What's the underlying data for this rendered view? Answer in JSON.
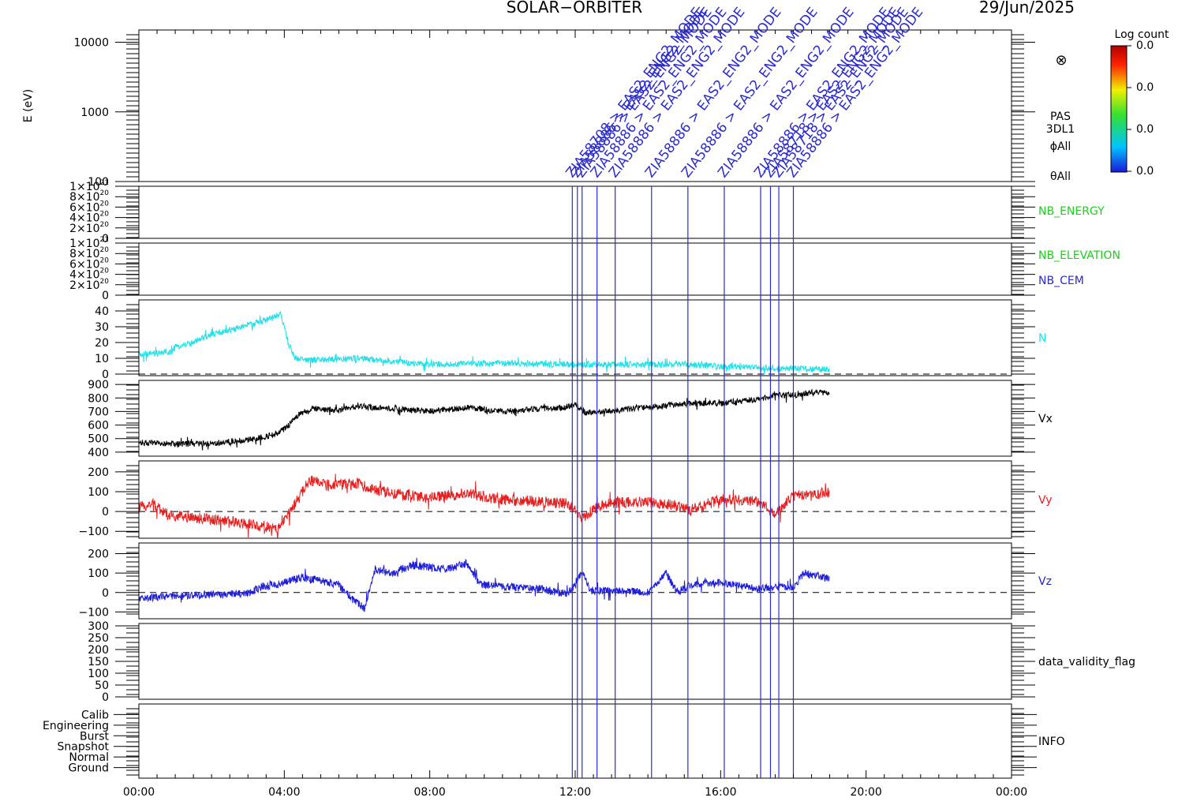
{
  "header": {
    "mission": "SOLAR−ORBITER",
    "date": "29/Jun/2025"
  },
  "colorbar": {
    "title": "Log count",
    "ticks": [
      "0.0",
      "0.0",
      "0.0",
      "0.0"
    ]
  },
  "time_axis": {
    "ticks": [
      "00:00",
      "04:00",
      "08:00",
      "12:00",
      "16:00",
      "20:00",
      "00:00"
    ],
    "range_hours": [
      0,
      24
    ]
  },
  "events": {
    "times_hours": [
      11.92,
      12.06,
      12.19,
      12.6,
      13.1,
      14.1,
      15.1,
      16.1,
      17.1,
      17.37,
      17.6,
      18.0
    ],
    "labels": [
      "ZIA58708 > EAS2_ENG2_MODE",
      "ZIA58886 > EAS2_ENG2_MODE",
      "ZIA58886 > EAS2_ENG2_MODE",
      "ZIA58886 > EAS2_ENG2_MODE",
      "ZIA58886 > EAS2_ENG2_MODE",
      "ZIA58886 > EAS2_ENG2_MODE",
      "ZIA58886 > EAS2_ENG2_MODE",
      "ZIA58886 > EAS2_ENG2_MODE",
      "ZIA58886 > EAS2_ENG2_MODE",
      "ZIA58718 > EAS2_ENG2_MODE",
      "ZIA58718 > EAS2_ENG2_MODE",
      "ZIA58886 > EAS2_ENG2_MODE"
    ],
    "color": "#2b2bd0"
  },
  "chart_data": [
    {
      "type": "spectrogram",
      "ylabel": "E (eV)",
      "yscale": "log",
      "ylim": [
        100,
        15000
      ],
      "ticks": [
        100,
        1000,
        10000
      ],
      "tick_labels": [
        "100",
        "1000",
        "10000"
      ],
      "right_labels": [
        "PAS",
        "3DL1",
        "ϕAll",
        "θAll"
      ],
      "no_data_symbol": "⊗"
    },
    {
      "type": "line",
      "ylim": [
        0,
        1e+21
      ],
      "ticks": [
        0,
        2e+20,
        4e+20,
        6e+20,
        8e+20,
        1e+21
      ],
      "tick_labels": [
        {
          "m": "0",
          "e": ""
        },
        {
          "m": "2×10",
          "e": "20"
        },
        {
          "m": "4×10",
          "e": "20"
        },
        {
          "m": "6×10",
          "e": "20"
        },
        {
          "m": "8×10",
          "e": "20"
        },
        {
          "m": "1×10",
          "e": "21"
        }
      ],
      "right_labels": [
        {
          "text": "NB_ENERGY",
          "color": "#22cc22"
        }
      ],
      "zero_line": true
    },
    {
      "type": "line",
      "ylim": [
        0,
        1e+21
      ],
      "ticks": [
        0,
        2e+20,
        4e+20,
        6e+20,
        8e+20,
        1e+21
      ],
      "tick_labels": [
        {
          "m": "0",
          "e": ""
        },
        {
          "m": "2×10",
          "e": "20"
        },
        {
          "m": "4×10",
          "e": "20"
        },
        {
          "m": "6×10",
          "e": "20"
        },
        {
          "m": "8×10",
          "e": "20"
        },
        {
          "m": "1×10",
          "e": "21"
        }
      ],
      "right_labels": [
        {
          "text": "NB_ELEVATION",
          "color": "#22cc22"
        },
        {
          "text": "NB_CEM",
          "color": "#2b2bd0"
        }
      ],
      "zero_line": true
    },
    {
      "type": "line",
      "ylim": [
        -1,
        47
      ],
      "ticks": [
        0,
        10,
        20,
        30,
        40
      ],
      "right_labels": [
        {
          "text": "N",
          "color": "#22e0e8"
        }
      ],
      "zero_line": true,
      "series": [
        {
          "color": "#22e0e8",
          "x": [
            0,
            0.5,
            0.9,
            1.0,
            1.5,
            2.0,
            2.5,
            3.0,
            3.3,
            3.6,
            3.9,
            4.0,
            4.1,
            4.3,
            4.6,
            5.0,
            6.0,
            7.0,
            8.0,
            10.0,
            12.0,
            14.0,
            15.0,
            16.0,
            17.0,
            18.0,
            19.0
          ],
          "y": [
            12,
            13,
            14,
            17,
            20,
            25,
            28,
            31,
            33,
            35,
            38,
            30,
            20,
            10,
            9,
            9,
            10,
            8,
            6,
            7,
            6,
            6,
            6,
            5,
            4,
            3.5,
            3
          ],
          "noise": 2.0
        }
      ]
    },
    {
      "type": "line",
      "ylim": [
        370,
        930
      ],
      "ticks": [
        400,
        500,
        600,
        700,
        800,
        900
      ],
      "right_labels": [
        {
          "text": "Vx",
          "color": "#000000"
        }
      ],
      "series": [
        {
          "color": "#000000",
          "x": [
            0,
            1,
            2,
            3,
            3.6,
            3.8,
            4.1,
            4.4,
            4.8,
            5.5,
            6,
            7,
            8,
            9,
            10,
            11,
            11.7,
            12.0,
            12.3,
            13,
            14,
            15,
            16,
            17,
            17.5,
            18,
            18.5,
            19.0
          ],
          "y": [
            470,
            460,
            465,
            490,
            520,
            540,
            590,
            680,
            720,
            710,
            740,
            720,
            700,
            730,
            700,
            720,
            730,
            750,
            690,
            705,
            730,
            760,
            760,
            790,
            820,
            820,
            840,
            840
          ],
          "noise": 22
        }
      ]
    },
    {
      "type": "line",
      "ylim": [
        -135,
        255
      ],
      "ticks": [
        -100,
        0,
        100,
        200
      ],
      "tick_labels": [
        "−100",
        "0",
        "100",
        "200"
      ],
      "right_labels": [
        {
          "text": "Vy",
          "color": "#e81e1e"
        }
      ],
      "zero_line": true,
      "series": [
        {
          "color": "#e81e1e",
          "x": [
            0,
            0.4,
            0.8,
            1.5,
            2.5,
            3.3,
            3.8,
            4.1,
            4.4,
            4.7,
            5.2,
            6.0,
            6.5,
            7.0,
            8.0,
            9.0,
            10.0,
            11.0,
            11.8,
            12.2,
            12.7,
            13.5,
            14.5,
            15.2,
            16.0,
            17.0,
            17.5,
            18.0,
            18.5,
            19.0
          ],
          "y": [
            20,
            40,
            -20,
            -30,
            -50,
            -70,
            -90,
            -20,
            70,
            160,
            130,
            140,
            110,
            90,
            70,
            90,
            60,
            50,
            40,
            -30,
            30,
            50,
            40,
            10,
            60,
            50,
            -10,
            80,
            80,
            100
          ],
          "noise": 28
        }
      ]
    },
    {
      "type": "line",
      "ylim": [
        -135,
        255
      ],
      "ticks": [
        -100,
        0,
        100,
        200
      ],
      "tick_labels": [
        "−100",
        "0",
        "100",
        "200"
      ],
      "right_labels": [
        {
          "text": "Vz",
          "color": "#1e1ed8"
        }
      ],
      "zero_line": true,
      "series": [
        {
          "color": "#1e1ed8",
          "x": [
            0,
            1,
            2,
            3,
            3.4,
            4.0,
            4.5,
            5.0,
            5.5,
            5.9,
            6.2,
            6.5,
            7.0,
            7.5,
            8.0,
            8.5,
            9.0,
            9.4,
            10.0,
            11.0,
            11.8,
            12.2,
            12.4,
            13.0,
            14.0,
            14.5,
            14.8,
            15.2,
            16.0,
            17.0,
            18.0,
            18.3,
            19.0
          ],
          "y": [
            -30,
            -20,
            -10,
            -5,
            30,
            50,
            80,
            60,
            40,
            -40,
            -80,
            120,
            100,
            140,
            130,
            120,
            150,
            40,
            30,
            20,
            -10,
            110,
            10,
            10,
            0,
            100,
            0,
            40,
            50,
            20,
            30,
            100,
            70
          ],
          "noise": 20
        }
      ]
    },
    {
      "type": "line",
      "ylim": [
        -10,
        310
      ],
      "ticks": [
        0,
        50,
        100,
        150,
        200,
        250,
        300
      ],
      "right_labels": [
        {
          "text": "data_validity_flag",
          "color": "#000000"
        }
      ]
    },
    {
      "type": "categories",
      "categories": [
        "Calib",
        "Engineering",
        "Burst",
        "Snapshot",
        "Normal",
        "Ground"
      ],
      "right_labels": [
        {
          "text": "INFO",
          "color": "#000000"
        }
      ]
    }
  ]
}
